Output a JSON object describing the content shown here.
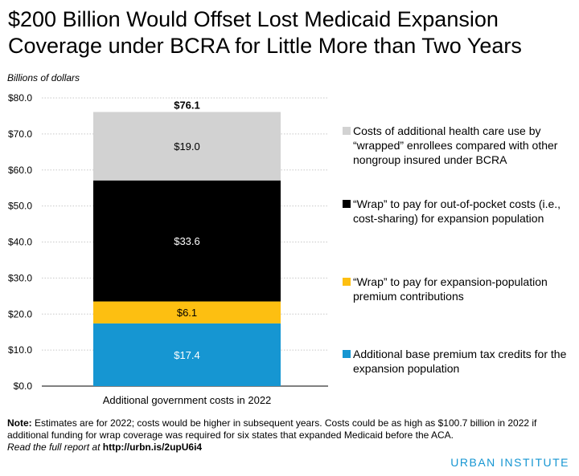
{
  "title": "$200 Billion Would Offset Lost Medicaid Expansion Coverage under BCRA for Little More than Two Years",
  "units_label": "Billions of dollars",
  "chart_data": {
    "type": "bar",
    "stacked": true,
    "categories": [
      "Additional government costs in 2022"
    ],
    "ylim": [
      0,
      80
    ],
    "yticks": [
      0,
      10,
      20,
      30,
      40,
      50,
      60,
      70,
      80
    ],
    "ytick_labels": [
      "$0.0",
      "$10.0",
      "$20.0",
      "$30.0",
      "$40.0",
      "$50.0",
      "$60.0",
      "$70.0",
      "$80.0"
    ],
    "total": 76.1,
    "total_label": "$76.1",
    "grid": true,
    "legend_position": "right",
    "series": [
      {
        "name": "Additional base premium tax credits for the expansion population",
        "values": [
          17.4
        ],
        "label": "$17.4",
        "color": "#1696d2",
        "label_color": "#ffffff"
      },
      {
        "name": "“Wrap” to pay for expansion-population premium contributions",
        "values": [
          6.1
        ],
        "label": "$6.1",
        "color": "#fdbf11",
        "label_color": "#000000"
      },
      {
        "name": "“Wrap” to pay for out-of-pocket costs (i.e., cost-sharing) for expansion population",
        "values": [
          33.6
        ],
        "label": "$33.6",
        "color": "#000000",
        "label_color": "#ffffff"
      },
      {
        "name": "Costs of additional health care use by “wrapped” enrollees compared with other nongroup insured under BCRA",
        "values": [
          19.0
        ],
        "label": "$19.0",
        "color": "#d2d2d2",
        "label_color": "#000000"
      }
    ]
  },
  "note_label": "Note:",
  "note_text": "Estimates are for 2022; costs would be higher in subsequent years. Costs could be as high as $100.7 billion in 2022 if additional funding for wrap coverage was required for six states that expanded Medicaid before the ACA.",
  "report_text": "Read the full report at",
  "report_url": "http://urbn.is/2upU6i4",
  "brand": "URBAN INSTITUTE"
}
